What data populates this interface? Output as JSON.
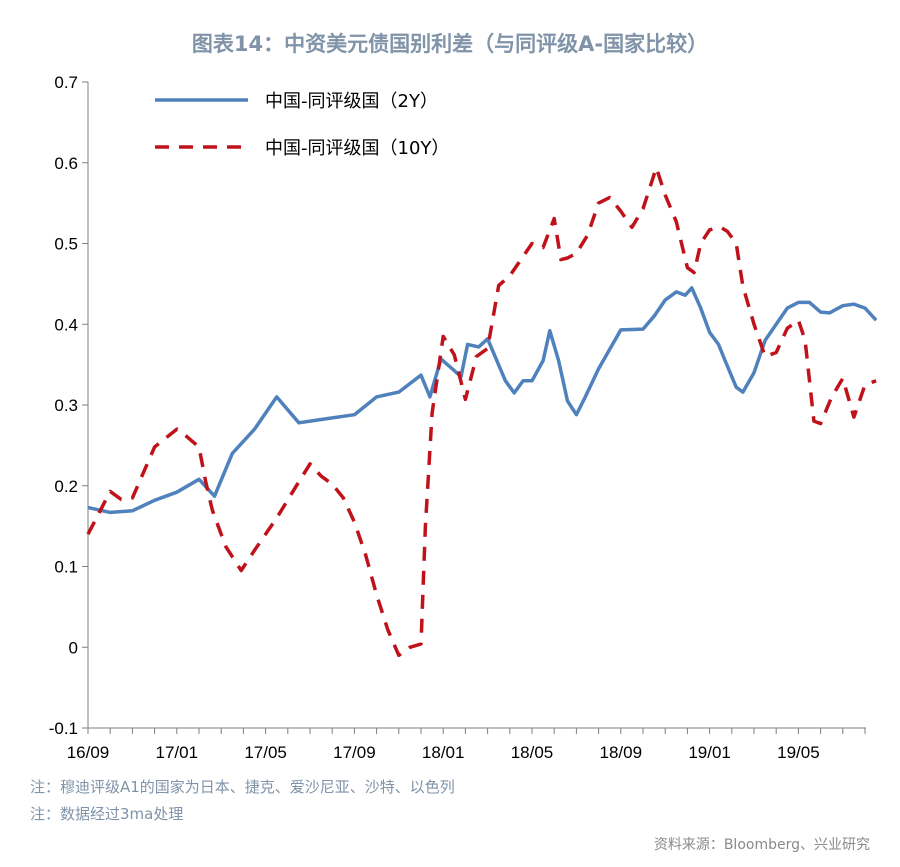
{
  "title": "图表14：中资美元债国别利差（与同评级A-国家比较）",
  "notes": [
    "注：穆迪评级A1的国家为日本、捷克、爱沙尼亚、沙特、以色列",
    "注：数据经过3ma处理"
  ],
  "source": "资料来源：Bloomberg、兴业研究",
  "colors": {
    "series_2y": "#4f81bd",
    "series_10y": "#c0121b"
  },
  "chart_data": {
    "type": "line",
    "ylim": [
      -0.1,
      0.7
    ],
    "yticks": [
      "-0.1",
      "0",
      "0.1",
      "0.2",
      "0.3",
      "0.4",
      "0.5",
      "0.6",
      "0.7"
    ],
    "xlim": [
      0,
      35.5
    ],
    "xticks": [
      {
        "label": "16/09",
        "x": 0
      },
      {
        "label": "17/01",
        "x": 4
      },
      {
        "label": "17/05",
        "x": 8
      },
      {
        "label": "17/09",
        "x": 12
      },
      {
        "label": "18/01",
        "x": 16
      },
      {
        "label": "18/05",
        "x": 20
      },
      {
        "label": "18/09",
        "x": 24
      },
      {
        "label": "19/01",
        "x": 28
      },
      {
        "label": "19/05",
        "x": 32
      }
    ],
    "series": [
      {
        "name": "中国-同评级国（2Y）",
        "style": "solid",
        "points": [
          [
            0,
            0.173
          ],
          [
            1,
            0.167
          ],
          [
            2,
            0.169
          ],
          [
            3,
            0.182
          ],
          [
            4,
            0.192
          ],
          [
            5,
            0.208
          ],
          [
            5.7,
            0.187
          ],
          [
            6.5,
            0.24
          ],
          [
            7.5,
            0.27
          ],
          [
            8.5,
            0.31
          ],
          [
            9.5,
            0.278
          ],
          [
            10.5,
            0.282
          ],
          [
            12,
            0.288
          ],
          [
            13,
            0.31
          ],
          [
            14,
            0.316
          ],
          [
            15,
            0.337
          ],
          [
            15.4,
            0.31
          ],
          [
            15.9,
            0.357
          ],
          [
            16.4,
            0.345
          ],
          [
            16.8,
            0.335
          ],
          [
            17.1,
            0.375
          ],
          [
            17.6,
            0.372
          ],
          [
            18,
            0.382
          ],
          [
            18.8,
            0.33
          ],
          [
            19.2,
            0.315
          ],
          [
            19.6,
            0.33
          ],
          [
            20,
            0.33
          ],
          [
            20.5,
            0.355
          ],
          [
            20.8,
            0.392
          ],
          [
            21.2,
            0.355
          ],
          [
            21.6,
            0.305
          ],
          [
            22,
            0.288
          ],
          [
            22.4,
            0.31
          ],
          [
            23,
            0.345
          ],
          [
            24,
            0.393
          ],
          [
            25,
            0.394
          ],
          [
            25.5,
            0.41
          ],
          [
            26,
            0.43
          ],
          [
            26.5,
            0.44
          ],
          [
            26.9,
            0.436
          ],
          [
            27.2,
            0.445
          ],
          [
            27.6,
            0.42
          ],
          [
            28,
            0.39
          ],
          [
            28.4,
            0.375
          ],
          [
            28.7,
            0.355
          ],
          [
            29.2,
            0.322
          ],
          [
            29.5,
            0.316
          ],
          [
            30,
            0.34
          ],
          [
            30.5,
            0.38
          ],
          [
            31,
            0.4
          ],
          [
            31.5,
            0.42
          ],
          [
            32,
            0.427
          ],
          [
            32.5,
            0.427
          ],
          [
            33,
            0.415
          ],
          [
            33.4,
            0.414
          ],
          [
            34,
            0.423
          ],
          [
            34.5,
            0.425
          ],
          [
            35,
            0.42
          ],
          [
            35.5,
            0.405
          ]
        ]
      },
      {
        "name": "中国-同评级国（10Y）",
        "style": "dashed",
        "points": [
          [
            0,
            0.14
          ],
          [
            1,
            0.193
          ],
          [
            1.5,
            0.183
          ],
          [
            2,
            0.185
          ],
          [
            3,
            0.248
          ],
          [
            4,
            0.27
          ],
          [
            4.4,
            0.262
          ],
          [
            5,
            0.248
          ],
          [
            5.3,
            0.205
          ],
          [
            5.6,
            0.17
          ],
          [
            6.2,
            0.125
          ],
          [
            6.9,
            0.095
          ],
          [
            7.5,
            0.12
          ],
          [
            8.5,
            0.16
          ],
          [
            9.5,
            0.205
          ],
          [
            10,
            0.227
          ],
          [
            10.5,
            0.212
          ],
          [
            11,
            0.202
          ],
          [
            11.5,
            0.185
          ],
          [
            12,
            0.155
          ],
          [
            12.5,
            0.115
          ],
          [
            13,
            0.065
          ],
          [
            13.5,
            0.022
          ],
          [
            14,
            -0.01
          ],
          [
            14.5,
            0.0
          ],
          [
            15,
            0.004
          ],
          [
            15.2,
            0.15
          ],
          [
            15.5,
            0.29
          ],
          [
            16,
            0.385
          ],
          [
            16.5,
            0.362
          ],
          [
            17,
            0.307
          ],
          [
            17.5,
            0.36
          ],
          [
            18,
            0.37
          ],
          [
            18.5,
            0.448
          ],
          [
            19,
            0.46
          ],
          [
            19.5,
            0.48
          ],
          [
            20,
            0.5
          ],
          [
            20.5,
            0.495
          ],
          [
            21,
            0.531
          ],
          [
            21.3,
            0.48
          ],
          [
            21.6,
            0.482
          ],
          [
            22,
            0.488
          ],
          [
            22.5,
            0.51
          ],
          [
            23,
            0.55
          ],
          [
            23.5,
            0.557
          ],
          [
            24,
            0.54
          ],
          [
            24.5,
            0.52
          ],
          [
            25,
            0.543
          ],
          [
            25.6,
            0.594
          ],
          [
            26,
            0.56
          ],
          [
            26.5,
            0.527
          ],
          [
            27,
            0.47
          ],
          [
            27.3,
            0.464
          ],
          [
            27.6,
            0.5
          ],
          [
            28,
            0.517
          ],
          [
            28.5,
            0.52
          ],
          [
            28.8,
            0.515
          ],
          [
            29.2,
            0.5
          ],
          [
            29.5,
            0.447
          ],
          [
            30,
            0.4
          ],
          [
            30.5,
            0.36
          ],
          [
            31,
            0.365
          ],
          [
            31.5,
            0.395
          ],
          [
            32,
            0.405
          ],
          [
            32.3,
            0.38
          ],
          [
            32.7,
            0.28
          ],
          [
            33,
            0.277
          ],
          [
            33.5,
            0.31
          ],
          [
            34,
            0.333
          ],
          [
            34.5,
            0.285
          ],
          [
            35,
            0.325
          ],
          [
            35.5,
            0.33
          ]
        ]
      }
    ]
  }
}
